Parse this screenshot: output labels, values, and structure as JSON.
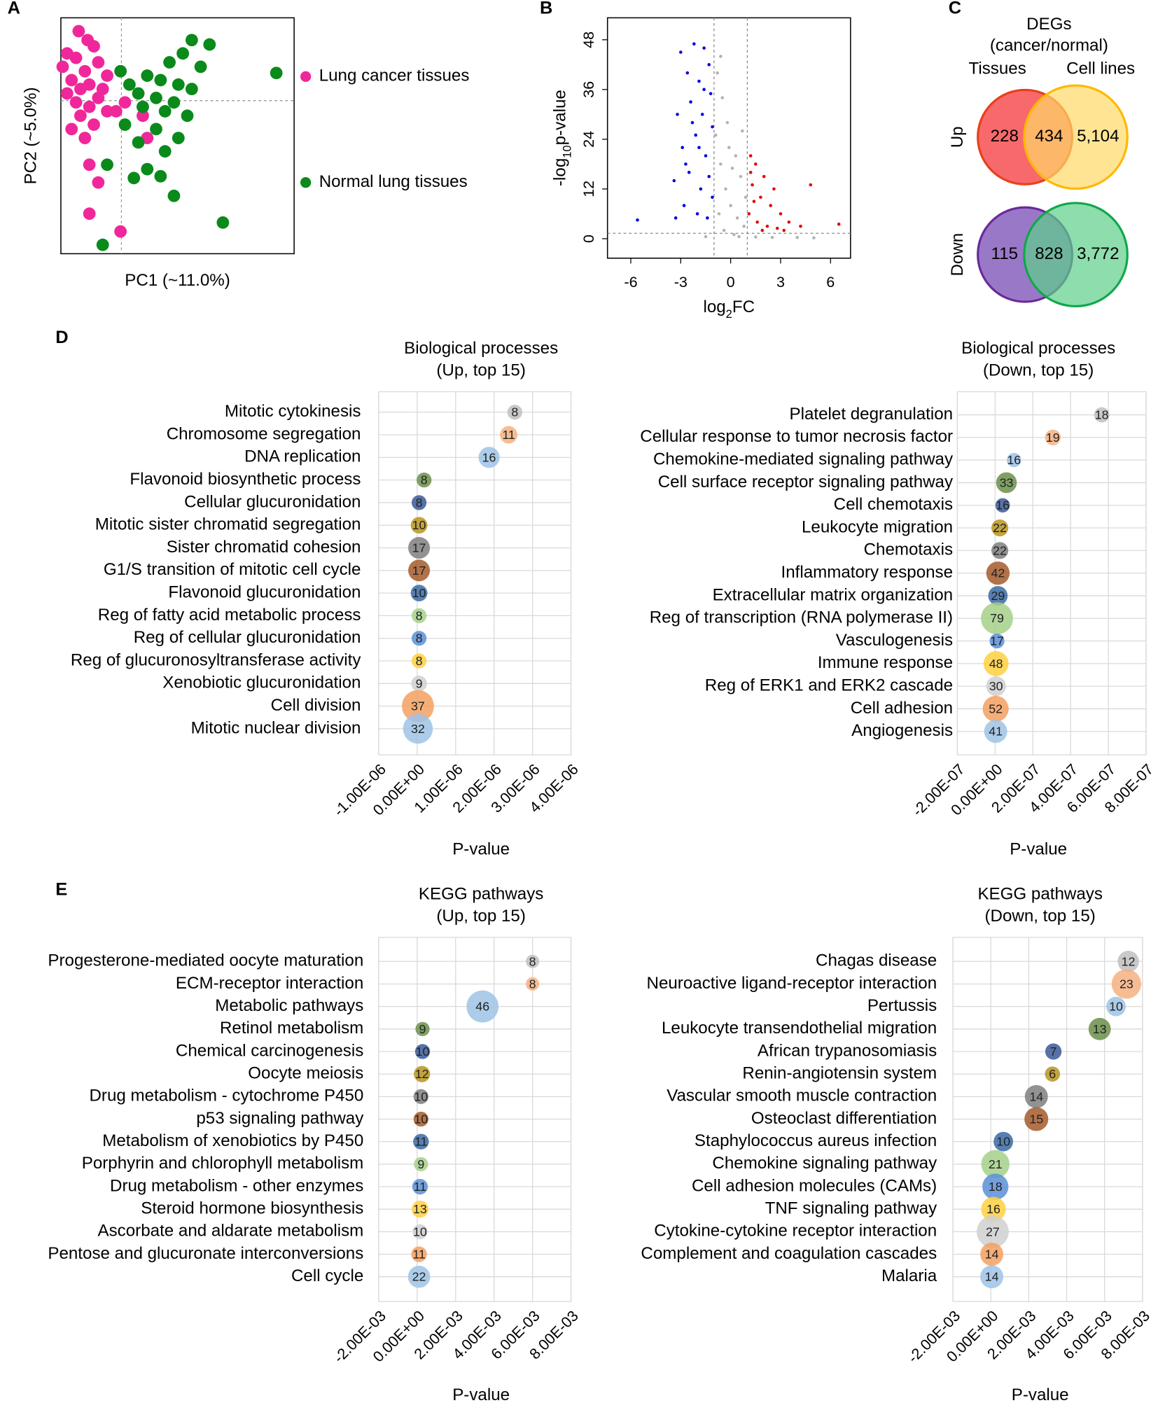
{
  "chart_data": [
    {
      "type": "scatter",
      "panel_label": "A",
      "xlabel": "PC1 (~11.0%)",
      "ylabel": "PC2 (~5.0%)",
      "xlim": [
        0,
        262
      ],
      "ylim": [
        0,
        265
      ],
      "reference_lines": {
        "x": 68,
        "y": 172
      },
      "legend": "right",
      "series": [
        {
          "name": "Lung cancer tissues",
          "color": "#f0279b",
          "x": [
            20,
            30,
            37,
            7,
            17,
            42,
            2,
            27,
            52,
            12,
            32,
            22,
            7,
            42,
            17,
            32,
            52,
            22,
            37,
            12,
            27,
            92,
            97,
            32,
            42,
            32,
            67,
            62,
            72,
            47
          ],
          "values": [
            250,
            240,
            233,
            225,
            220,
            215,
            210,
            205,
            200,
            195,
            190,
            185,
            180,
            175,
            170,
            165,
            160,
            155,
            145,
            140,
            130,
            155,
            130,
            100,
            80,
            45,
            25,
            160,
            170,
            185
          ]
        },
        {
          "name": "Normal lung tissues",
          "color": "#0a8a1a",
          "x": [
            147,
            167,
            137,
            122,
            242,
            97,
            112,
            132,
            77,
            87,
            147,
            107,
            127,
            92,
            117,
            142,
            72,
            107,
            132,
            87,
            117,
            52,
            97,
            82,
            112,
            127,
            182,
            47,
            67,
            157
          ],
          "values": [
            240,
            235,
            225,
            215,
            203,
            200,
            195,
            190,
            190,
            180,
            185,
            175,
            170,
            165,
            160,
            155,
            145,
            140,
            130,
            125,
            115,
            100,
            95,
            85,
            87,
            65,
            35,
            10,
            205,
            210
          ]
        }
      ]
    },
    {
      "type": "scatter",
      "panel_label": "B",
      "xlabel": [
        "log",
        "2",
        "FC"
      ],
      "ylabel": [
        "-log",
        "10",
        "p-value"
      ],
      "xlim": [
        -7.4,
        7.2
      ],
      "ylim": [
        -4.7,
        53.3
      ],
      "xticks": [
        -6,
        -3,
        0,
        3,
        6
      ],
      "yticks": [
        0,
        12,
        24,
        36,
        48
      ],
      "thresholds": {
        "x": [
          -1,
          1
        ],
        "y": 1.3
      },
      "series": [
        {
          "name": "down",
          "color": "#0000e6",
          "x": [
            -3.0,
            -2.2,
            -1.6,
            -2.6,
            -1.9,
            -1.3,
            -3.2,
            -2.4,
            -1.7,
            -1.2,
            -2.9,
            -2.1,
            -1.5,
            -1.1,
            -3.4,
            -2.5,
            -1.8,
            -1.3,
            -2.8,
            -2.0,
            -1.4,
            -5.6,
            -3.3,
            -1.1,
            -2.3,
            -1.6,
            -2.7,
            -1.9
          ],
          "values": [
            45,
            47,
            46,
            40,
            38,
            42,
            30,
            33,
            30,
            35,
            22,
            25,
            20,
            27,
            14,
            16,
            12,
            15,
            8,
            6,
            5,
            4.5,
            5,
            10,
            28,
            36,
            18,
            22
          ]
        },
        {
          "name": "ns",
          "color": "#b4b4b4",
          "x": [
            -0.8,
            -0.5,
            -0.2,
            0.3,
            0.6,
            0.9,
            -0.9,
            -0.6,
            -0.3,
            0,
            0.4,
            0.8,
            -0.7,
            -0.4,
            0.2,
            0.5,
            1.5,
            2.5,
            4,
            5,
            -1.5,
            -0.1,
            0.7,
            -0.6,
            0.1
          ],
          "values": [
            40,
            34,
            28,
            20,
            15,
            10,
            25,
            18,
            12,
            8,
            5,
            3,
            6,
            2,
            1,
            0.5,
            0.4,
            0.3,
            0.3,
            0.2,
            0.5,
            22,
            26,
            44,
            17
          ]
        },
        {
          "name": "up",
          "color": "#e60000",
          "x": [
            1.2,
            1.5,
            2.0,
            1.3,
            1.8,
            2.4,
            3.0,
            1.1,
            1.6,
            2.2,
            2.8,
            3.5,
            4.2,
            4.8,
            1.4,
            2.6,
            3.2,
            1.9,
            6.5,
            1.2
          ],
          "values": [
            20,
            18,
            15,
            13,
            10,
            8,
            6,
            6,
            4,
            3,
            2.5,
            4,
            3,
            13,
            9,
            12,
            2,
            2,
            3.5,
            16
          ]
        }
      ]
    },
    {
      "type": "venn",
      "panel_label": "C",
      "title": [
        "DEGs",
        "(cancer/normal)"
      ],
      "sets": [
        "Tissues",
        "Cell lines"
      ],
      "rows": [
        {
          "name": "Up",
          "values": [
            228,
            434,
            5104
          ],
          "value_labels": [
            "228",
            "434",
            "5,104"
          ],
          "colors": [
            "#f8696b",
            "#ffd966"
          ],
          "strokes": [
            "#e8401c",
            "#ffb800"
          ]
        },
        {
          "name": "Down",
          "values": [
            115,
            828,
            3772
          ],
          "value_labels": [
            "115",
            "828",
            "3,772"
          ],
          "colors": [
            "#9a78c8",
            "#5ccf8a"
          ],
          "strokes": [
            "#6a2a9a",
            "#10a84a"
          ]
        }
      ]
    },
    {
      "type": "bubble",
      "panel_label": "D",
      "title": [
        "Biological processes",
        "(Up, top 15)"
      ],
      "xlabel": "P-value",
      "categories": [
        "Mitotic cytokinesis",
        "Chromosome segregation",
        "DNA replication",
        "Flavonoid biosynthetic process",
        "Cellular glucuronidation",
        "Mitotic sister chromatid segregation",
        "Sister chromatid cohesion",
        "G1/S transition of mitotic cell cycle",
        "Flavonoid glucuronidation",
        "Reg of fatty acid metabolic process",
        "Reg of cellular glucuronidation",
        "Reg of glucuronosyltransferase activity",
        "Xenobiotic glucuronidation",
        "Cell division",
        "Mitotic nuclear division"
      ],
      "values": [
        2.54e-06,
        2.38e-06,
        1.87e-06,
        1.8e-07,
        5e-08,
        5e-08,
        5e-08,
        5e-08,
        5e-08,
        5e-08,
        5e-08,
        5e-08,
        5e-08,
        2e-08,
        2e-08
      ],
      "sizes": [
        8,
        11,
        16,
        8,
        8,
        10,
        17,
        17,
        10,
        8,
        8,
        8,
        9,
        37,
        32
      ],
      "colors": [
        "#bfbfbf",
        "#f4b183",
        "#9dc3e6",
        "#6a8f4a",
        "#3b5998",
        "#b8941f",
        "#7f7f7f",
        "#a55a2a",
        "#3a6aa5",
        "#a5d08a",
        "#5b8fd6",
        "#ffd040",
        "#d0d0d0",
        "#f4a060",
        "#9dc3e6"
      ],
      "xlim": [
        -1e-06,
        4e-06
      ],
      "xticks": [
        {
          "value": -1e-06,
          "label": "-1.00E-06"
        },
        {
          "value": 0,
          "label": "0.00E+00"
        },
        {
          "value": 1e-06,
          "label": "1.00E-06"
        },
        {
          "value": 2e-06,
          "label": "2.00E-06"
        },
        {
          "value": 3e-06,
          "label": "3.00E-06"
        },
        {
          "value": 4e-06,
          "label": "4.00E-06"
        }
      ],
      "grid": true
    },
    {
      "type": "bubble",
      "title": [
        "Biological processes",
        "(Down, top 15)"
      ],
      "xlabel": "P-value",
      "categories": [
        "Platelet degranulation",
        "Cellular response to tumor necrosis factor",
        "Chemokine-mediated signaling pathway",
        "Cell surface receptor signaling pathway",
        "Cell chemotaxis",
        "Leukocyte migration",
        "Chemotaxis",
        "Inflammatory response",
        "Extracellular matrix organization",
        "Reg of transcription (RNA polymerase II)",
        "Vasculogenesis",
        "Immune response",
        "Reg of ERK1 and ERK2 cascade",
        "Cell adhesion",
        "Angiogenesis"
      ],
      "values": [
        5.65e-07,
        3.06e-07,
        1e-07,
        6e-08,
        4e-08,
        2.5e-08,
        2.5e-08,
        1.5e-08,
        1.5e-08,
        1e-08,
        1e-08,
        5e-09,
        5e-09,
        3e-09,
        3e-09
      ],
      "sizes": [
        18,
        19,
        16,
        33,
        16,
        22,
        22,
        42,
        29,
        79,
        17,
        48,
        30,
        52,
        41
      ],
      "colors": [
        "#bfbfbf",
        "#f4b183",
        "#9dc3e6",
        "#6a8f4a",
        "#3b5998",
        "#b8941f",
        "#7f7f7f",
        "#a55a2a",
        "#3a6aa5",
        "#a5d08a",
        "#5b8fd6",
        "#ffd040",
        "#d0d0d0",
        "#f4a060",
        "#9dc3e6"
      ],
      "xlim": [
        -2e-07,
        8e-07
      ],
      "xticks": [
        {
          "value": -2e-07,
          "label": "-2.00E-07"
        },
        {
          "value": 0,
          "label": "0.00E+00"
        },
        {
          "value": 2e-07,
          "label": "2.00E-07"
        },
        {
          "value": 4e-07,
          "label": "4.00E-07"
        },
        {
          "value": 6e-07,
          "label": "6.00E-07"
        },
        {
          "value": 8e-07,
          "label": "8.00E-07"
        }
      ],
      "grid": true
    },
    {
      "type": "bubble",
      "panel_label": "E",
      "title": [
        "KEGG pathways",
        "(Up, top 15)"
      ],
      "xlabel": "P-value",
      "categories": [
        "Progesterone-mediated oocyte maturation",
        "ECM-receptor interaction",
        "Metabolic pathways",
        "Retinol metabolism",
        "Chemical carcinogenesis",
        "Oocyte meiosis",
        "Drug metabolism - cytochrome P450",
        "p53 signaling pathway",
        "Metabolism of xenobiotics by P450",
        "Porphyrin and chlorophyll metabolism",
        "Drug metabolism - other enzymes",
        "Steroid hormone biosynthesis",
        "Ascorbate and aldarate metabolism",
        "Pentose and glucuronate interconversions",
        "Cell cycle"
      ],
      "values": [
        0.006,
        0.006,
        0.0034,
        0.00028,
        0.00028,
        0.00025,
        0.0002,
        0.0002,
        0.0002,
        0.0002,
        0.00015,
        0.00015,
        0.00015,
        0.0001,
        0.0001
      ],
      "sizes": [
        8,
        8,
        46,
        9,
        10,
        12,
        10,
        10,
        11,
        9,
        11,
        13,
        10,
        11,
        22
      ],
      "colors": [
        "#bfbfbf",
        "#f4b183",
        "#9dc3e6",
        "#6a8f4a",
        "#3b5998",
        "#b8941f",
        "#7f7f7f",
        "#a55a2a",
        "#3a6aa5",
        "#a5d08a",
        "#5b8fd6",
        "#ffd040",
        "#d0d0d0",
        "#f4a060",
        "#9dc3e6"
      ],
      "xlim": [
        -0.002,
        0.008
      ],
      "xticks": [
        {
          "value": -0.002,
          "label": "-2.00E-03"
        },
        {
          "value": 0,
          "label": "0.00E+00"
        },
        {
          "value": 0.002,
          "label": "2.00E-03"
        },
        {
          "value": 0.004,
          "label": "4.00E-03"
        },
        {
          "value": 0.006,
          "label": "6.00E-03"
        },
        {
          "value": 0.008,
          "label": "8.00E-03"
        }
      ],
      "grid": true
    },
    {
      "type": "bubble",
      "title": [
        "KEGG pathways",
        "(Down, top 15)"
      ],
      "xlabel": "P-value",
      "categories": [
        "Chagas disease",
        "Neuroactive ligand-receptor interaction",
        "Pertussis",
        "Leukocyte transendothelial migration",
        "African trypanosomiasis",
        "Renin-angiotensin system",
        "Vascular smooth muscle contraction",
        "Osteoclast differentiation",
        "Staphylococcus aureus infection",
        "Chemokine signaling pathway",
        "Cell adhesion molecules (CAMs)",
        "TNF signaling pathway",
        "Cytokine-cytokine receptor interaction",
        "Complement and coagulation cascades",
        "Malaria"
      ],
      "values": [
        0.00725,
        0.00715,
        0.0066,
        0.00574,
        0.0033,
        0.00325,
        0.0024,
        0.0024,
        0.00066,
        0.00024,
        0.00024,
        0.00014,
        0.0001,
        5e-05,
        5e-05
      ],
      "sizes": [
        12,
        23,
        10,
        13,
        7,
        6,
        14,
        15,
        10,
        21,
        18,
        16,
        27,
        14,
        14
      ],
      "colors": [
        "#bfbfbf",
        "#f4b183",
        "#9dc3e6",
        "#6a8f4a",
        "#3b5998",
        "#b8941f",
        "#7f7f7f",
        "#a55a2a",
        "#3a6aa5",
        "#a5d08a",
        "#5b8fd6",
        "#ffd040",
        "#d0d0d0",
        "#f4a060",
        "#9dc3e6"
      ],
      "xlim": [
        -0.002,
        0.008
      ],
      "xticks": [
        {
          "value": -0.002,
          "label": "-2.00E-03"
        },
        {
          "value": 0,
          "label": "0.00E+00"
        },
        {
          "value": 0.002,
          "label": "2.00E-03"
        },
        {
          "value": 0.004,
          "label": "4.00E-03"
        },
        {
          "value": 0.006,
          "label": "6.00E-03"
        },
        {
          "value": 0.008,
          "label": "8.00E-03"
        }
      ],
      "grid": true
    }
  ]
}
